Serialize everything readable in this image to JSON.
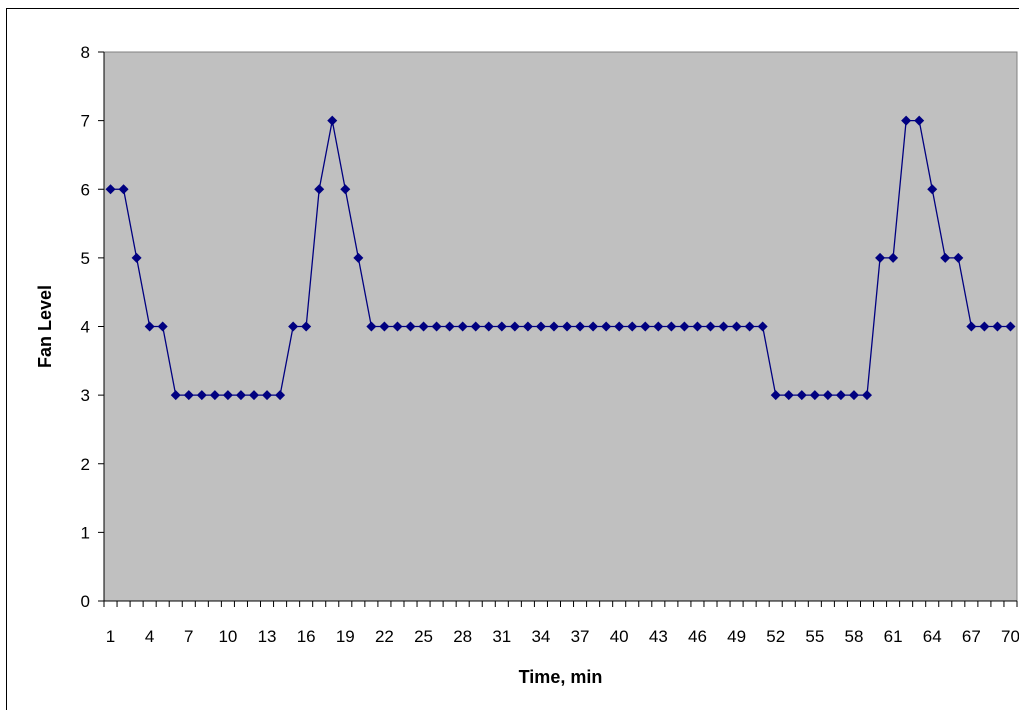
{
  "chart_data": {
    "type": "line",
    "title": "",
    "xlabel": "Time, min",
    "ylabel": "Fan Level",
    "x": [
      1,
      2,
      3,
      4,
      5,
      6,
      7,
      8,
      9,
      10,
      11,
      12,
      13,
      14,
      15,
      16,
      17,
      18,
      19,
      20,
      21,
      22,
      23,
      24,
      25,
      26,
      27,
      28,
      29,
      30,
      31,
      32,
      33,
      34,
      35,
      36,
      37,
      38,
      39,
      40,
      41,
      42,
      43,
      44,
      45,
      46,
      47,
      48,
      49,
      50,
      51,
      52,
      53,
      54,
      55,
      56,
      57,
      58,
      59,
      60,
      61,
      62,
      63,
      64,
      65,
      66,
      67,
      68,
      69,
      70
    ],
    "x_tick_labels": [
      "1",
      "4",
      "7",
      "10",
      "13",
      "16",
      "19",
      "22",
      "25",
      "28",
      "31",
      "34",
      "37",
      "40",
      "43",
      "46",
      "49",
      "52",
      "55",
      "58",
      "61",
      "64",
      "67",
      "70"
    ],
    "series": [
      {
        "values": [
          6,
          6,
          5,
          4,
          4,
          3,
          3,
          3,
          3,
          3,
          3,
          3,
          3,
          3,
          4,
          4,
          6,
          7,
          6,
          5,
          4,
          4,
          4,
          4,
          4,
          4,
          4,
          4,
          4,
          4,
          4,
          4,
          4,
          4,
          4,
          4,
          4,
          4,
          4,
          4,
          4,
          4,
          4,
          4,
          4,
          4,
          4,
          4,
          4,
          4,
          4,
          3,
          3,
          3,
          3,
          3,
          3,
          3,
          3,
          5,
          5,
          7,
          7,
          6,
          5,
          5,
          4,
          4,
          4,
          4
        ],
        "color": "#000080",
        "marker": "diamond"
      }
    ],
    "ylim": [
      0,
      8
    ],
    "y_ticks": [
      "0",
      "1",
      "2",
      "3",
      "4",
      "5",
      "6",
      "7",
      "8"
    ],
    "grid": false,
    "plot_background": "#c0c0c0",
    "legend": "none"
  }
}
